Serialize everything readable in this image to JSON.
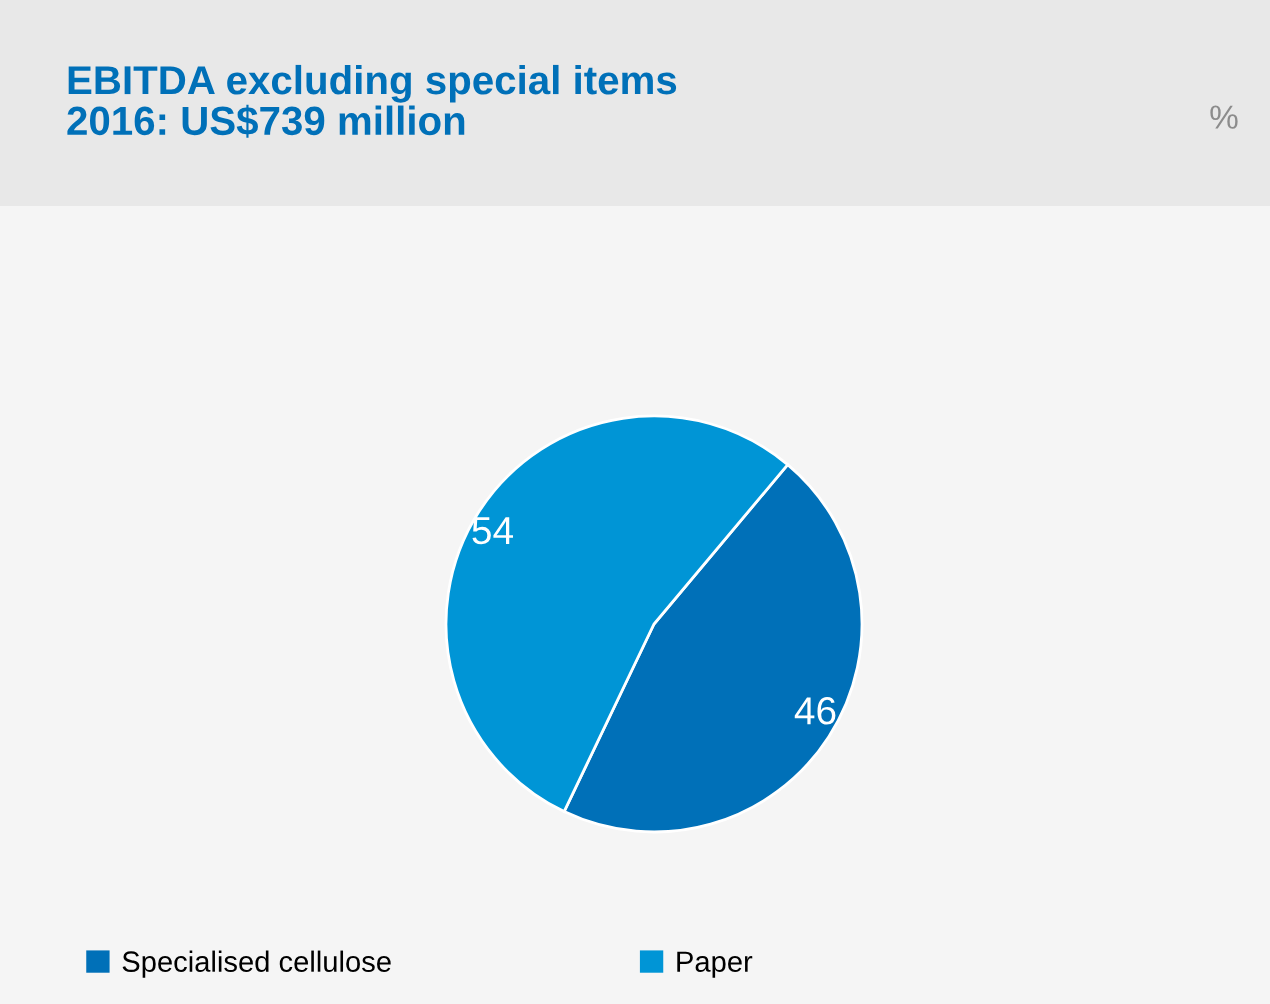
{
  "chart_data": {
    "type": "pie",
    "title": "EBITDA excluding special items\n2016: US$739 million",
    "categories": [
      "Specialised cellulose",
      "Paper"
    ],
    "values": [
      46,
      54
    ],
    "colors": [
      "#0070b8",
      "#0095d6"
    ],
    "data_labels": true,
    "legend": "bottom",
    "annotations": [
      "%"
    ]
  }
}
